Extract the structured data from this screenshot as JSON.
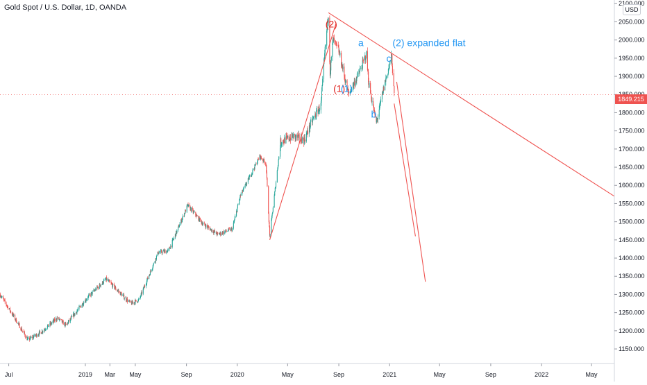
{
  "header": {
    "title": "Gold Spot / U.S. Dollar, 1D, OANDA"
  },
  "price_axis": {
    "currency_badge": "USD",
    "last_price_label": "1849.215"
  },
  "colors": {
    "up": "#26a69a",
    "down": "#ef5350",
    "drawing": "#ef5350",
    "wave_red": "#e0231f",
    "wave_blue": "#2196f3",
    "last_price": "#ef5350"
  },
  "chart_data": {
    "type": "candlestick",
    "symbol": "Gold Spot / U.S. Dollar",
    "interval": "1D",
    "source": "OANDA",
    "ylim": [
      1110,
      2110
    ],
    "y_ticks": [
      "2100.000",
      "2050.000",
      "2000.000",
      "1950.000",
      "1900.000",
      "1850.000",
      "1800.000",
      "1750.000",
      "1700.000",
      "1650.000",
      "1600.000",
      "1550.000",
      "1500.000",
      "1450.000",
      "1400.000",
      "1350.000",
      "1300.000",
      "1250.000",
      "1200.000",
      "1150.000"
    ],
    "y_tick_values": [
      2100,
      2050,
      2000,
      1950,
      1900,
      1850,
      1800,
      1750,
      1700,
      1650,
      1600,
      1550,
      1500,
      1450,
      1400,
      1350,
      1300,
      1250,
      1200,
      1150
    ],
    "x_ticks": [
      "Jul",
      "2019",
      "Mar",
      "May",
      "Sep",
      "2020",
      "May",
      "Sep",
      "2021",
      "May",
      "Sep",
      "2022",
      "May"
    ],
    "x_tick_dates": [
      "2018-07-01",
      "2019-01-01",
      "2019-03-01",
      "2019-05-01",
      "2019-09-01",
      "2020-01-01",
      "2020-05-01",
      "2020-09-01",
      "2021-01-01",
      "2021-05-01",
      "2021-09-01",
      "2022-01-01",
      "2022-05-01"
    ],
    "x_range": [
      "2018-06-10",
      "2022-06-25"
    ],
    "last_price": 1849.215,
    "price_path": [
      [
        "2018-06-10",
        1300
      ],
      [
        "2018-07-10",
        1245
      ],
      [
        "2018-08-16",
        1175
      ],
      [
        "2018-09-15",
        1195
      ],
      [
        "2018-10-26",
        1235
      ],
      [
        "2018-11-15",
        1215
      ],
      [
        "2019-01-05",
        1290
      ],
      [
        "2019-02-20",
        1342
      ],
      [
        "2019-04-20",
        1275
      ],
      [
        "2019-05-10",
        1285
      ],
      [
        "2019-06-25",
        1415
      ],
      [
        "2019-07-20",
        1420
      ],
      [
        "2019-09-04",
        1545
      ],
      [
        "2019-10-10",
        1495
      ],
      [
        "2019-11-15",
        1465
      ],
      [
        "2019-12-20",
        1480
      ],
      [
        "2020-01-08",
        1570
      ],
      [
        "2020-02-24",
        1680
      ],
      [
        "2020-03-10",
        1660
      ],
      [
        "2020-03-19",
        1460
      ],
      [
        "2020-04-14",
        1720
      ],
      [
        "2020-05-15",
        1735
      ],
      [
        "2020-06-10",
        1725
      ],
      [
        "2020-06-30",
        1780
      ],
      [
        "2020-07-20",
        1820
      ],
      [
        "2020-07-29",
        1960
      ],
      [
        "2020-08-07",
        2070
      ],
      [
        "2020-08-11",
        1910
      ],
      [
        "2020-08-18",
        2000
      ],
      [
        "2020-09-01",
        1970
      ],
      [
        "2020-09-24",
        1850
      ],
      [
        "2020-10-20",
        1910
      ],
      [
        "2020-11-06",
        1960
      ],
      [
        "2020-11-12",
        1880
      ],
      [
        "2020-11-30",
        1770
      ],
      [
        "2020-12-20",
        1880
      ],
      [
        "2021-01-06",
        1955
      ],
      [
        "2021-01-12",
        1845
      ]
    ],
    "drawings": [
      {
        "type": "trend_line",
        "from": [
          "2020-03-19",
          1450
        ],
        "to": [
          "2020-08-25",
          2045
        ]
      },
      {
        "type": "trend_line",
        "from": [
          "2020-08-07",
          2075
        ],
        "to": [
          "2022-06-25",
          1570
        ]
      },
      {
        "type": "trend_line",
        "from": [
          "2021-01-12",
          1825
        ],
        "to": [
          "2021-03-04",
          1460
        ]
      },
      {
        "type": "trend_line",
        "from": [
          "2021-01-18",
          1885
        ],
        "to": [
          "2021-03-28",
          1335
        ]
      }
    ],
    "annotations": [
      {
        "text": "(2)",
        "date": "2020-08-14",
        "price": 2035,
        "color": "red"
      },
      {
        "text": "(1)",
        "date": "2020-09-02",
        "price": 1857,
        "color": "red"
      },
      {
        "text": "(1)",
        "date": "2020-09-20",
        "price": 1857,
        "color": "blue"
      },
      {
        "text": "a",
        "date": "2020-10-24",
        "price": 1983,
        "color": "blue"
      },
      {
        "text": "(2) expanded flat",
        "date": "2021-01-08",
        "price": 1983,
        "color": "blue",
        "anchor": "start"
      },
      {
        "text": "c",
        "date": "2020-12-30",
        "price": 1940,
        "color": "blue"
      },
      {
        "text": "b",
        "date": "2020-11-24",
        "price": 1787,
        "color": "blue"
      }
    ]
  }
}
